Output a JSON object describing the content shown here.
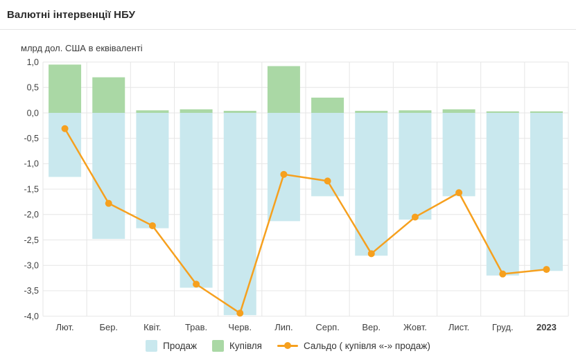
{
  "header": {
    "title": "Валютні інтервенції НБУ"
  },
  "chart_data": {
    "type": "bar",
    "title": "Валютні інтервенції НБУ",
    "unit_label": "млрд дол. США в еквіваленті",
    "categories": [
      "Лют.",
      "Бер.",
      "Квіт.",
      "Трав.",
      "Черв.",
      "Лип.",
      "Серп.",
      "Вер.",
      "Жовт.",
      "Лист.",
      "Груд.",
      "2023"
    ],
    "emphasized_category": "2023",
    "series": [
      {
        "name": "Продаж",
        "type": "bar",
        "color": "#c9e8ee",
        "values": [
          -1.26,
          -2.48,
          -2.27,
          -3.44,
          -3.98,
          -2.13,
          -1.64,
          -2.81,
          -2.1,
          -1.64,
          -3.2,
          -3.11
        ]
      },
      {
        "name": "Купівля",
        "type": "bar",
        "color": "#aad8a5",
        "values": [
          0.95,
          0.7,
          0.05,
          0.07,
          0.04,
          0.92,
          0.3,
          0.04,
          0.05,
          0.07,
          0.03,
          0.03
        ]
      },
      {
        "name": "Сальдо ( купівля «-» продаж)",
        "type": "line",
        "color": "#f6a01e",
        "values": [
          -0.31,
          -1.78,
          -2.22,
          -3.37,
          -3.94,
          -1.21,
          -1.34,
          -2.77,
          -2.05,
          -1.57,
          -3.17,
          -3.08
        ]
      }
    ],
    "ylim": [
      -4.0,
      1.0
    ],
    "ytick_step": 0.5,
    "grid": true,
    "gridline_color": "#e6e6e6",
    "axis_text_color": "#404040",
    "decimal_separator": ",",
    "legend_position": "bottom"
  }
}
